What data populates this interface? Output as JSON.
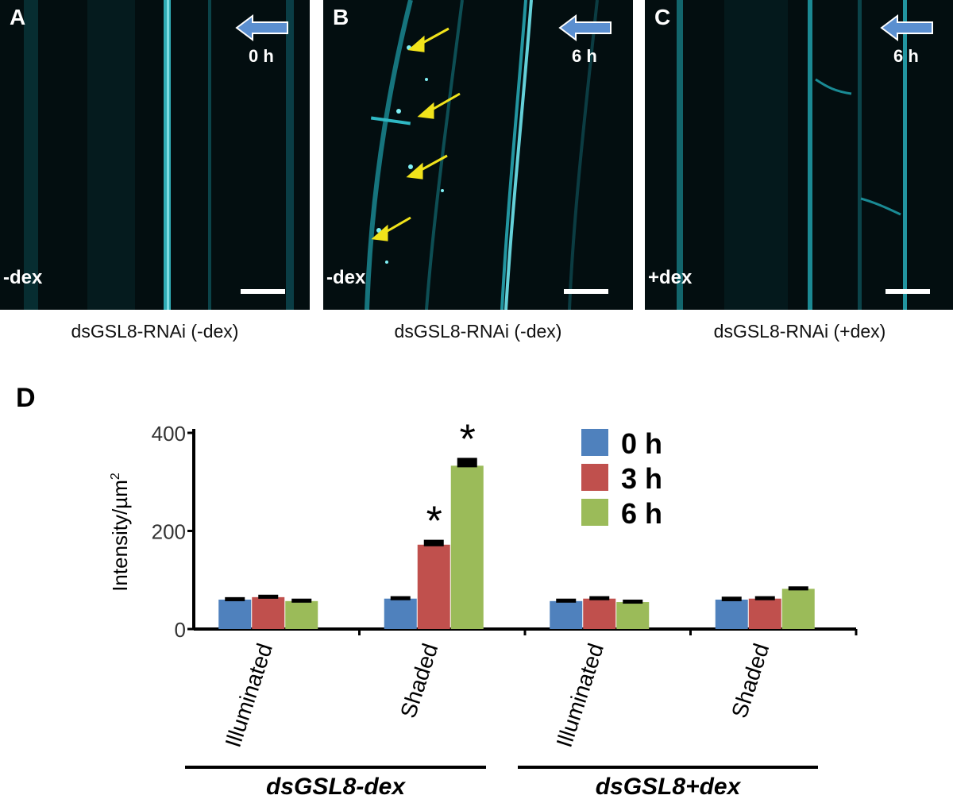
{
  "panels": [
    {
      "letter": "A",
      "time": "0 h",
      "treatment": "-dex",
      "caption": "dsGSL8-RNAi (-dex)"
    },
    {
      "letter": "B",
      "time": "6 h",
      "treatment": "-dex",
      "caption": "dsGSL8-RNAi (-dex)"
    },
    {
      "letter": "C",
      "time": "6 h",
      "treatment": "+dex",
      "caption": "dsGSL8-RNAi (+dex)"
    }
  ],
  "colors": {
    "arrow": "#5b8fd0",
    "pointer": "#f1e31b",
    "fluor": "#33d6e0",
    "bg": "#030e10"
  },
  "chart_data": {
    "type": "bar",
    "panel_letter": "D",
    "ylabel": "Intensity/µm",
    "ylabel_sup": "2",
    "ylim": [
      0,
      400
    ],
    "yticks": [
      "0",
      "200",
      "400"
    ],
    "categories": [
      "Illuminated",
      "Shaded",
      "Illuminated",
      "Shaded"
    ],
    "groups": [
      {
        "label_main": "dsGSL8",
        "label_suffix": "-dex"
      },
      {
        "label_main": "dsGSL8",
        "label_suffix": "+dex"
      }
    ],
    "series": [
      {
        "name": "0 h",
        "color": "#4f81bd",
        "values": [
          60,
          62,
          57,
          60
        ],
        "errors": [
          5,
          5,
          5,
          6
        ]
      },
      {
        "name": "3 h",
        "color": "#c0504d",
        "values": [
          65,
          172,
          62,
          62
        ],
        "errors": [
          5,
          10,
          5,
          5
        ]
      },
      {
        "name": "6 h",
        "color": "#9bbb59",
        "values": [
          57,
          333,
          55,
          82
        ],
        "errors": [
          5,
          16,
          5,
          5
        ]
      }
    ],
    "significance_marker": "*",
    "significant": [
      [
        1,
        1
      ],
      [
        1,
        2
      ]
    ]
  }
}
